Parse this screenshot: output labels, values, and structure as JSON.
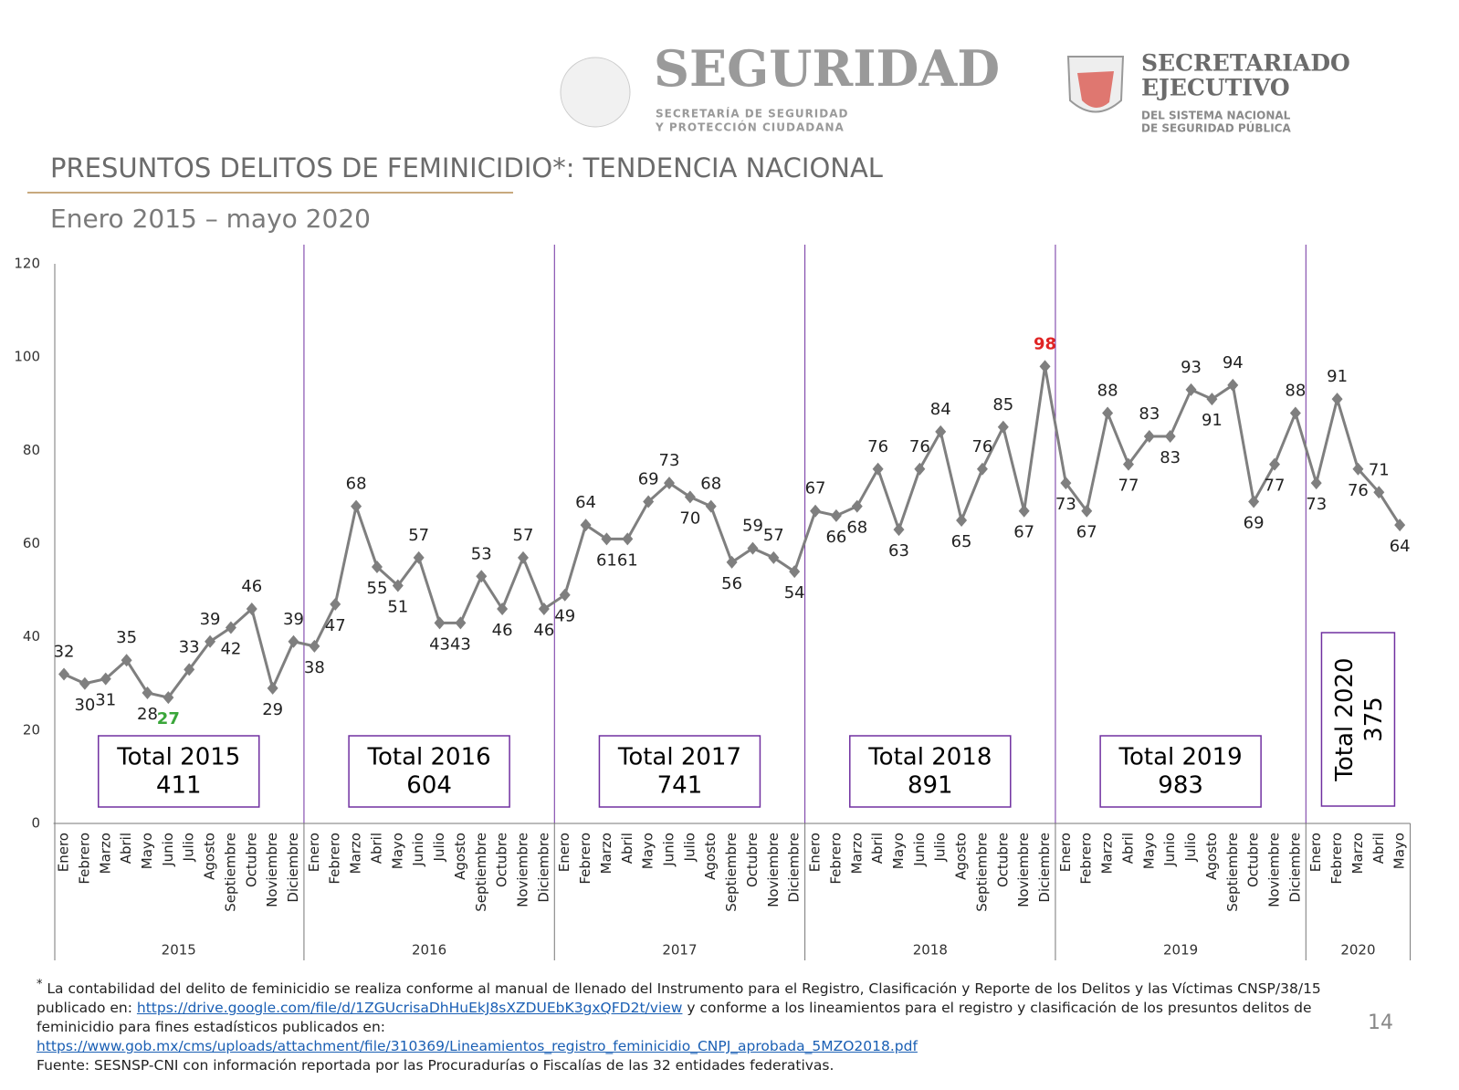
{
  "header": {
    "logo1": {
      "name": "SEGURIDAD",
      "line1": "SECRETARÍA DE SEGURIDAD",
      "line2": "Y PROTECCIÓN CIUDADANA"
    },
    "logo2": {
      "name1": "SECRETARIADO",
      "name2": "EJECUTIVO",
      "line1": "DEL SISTEMA NACIONAL",
      "line2": "DE SEGURIDAD PÚBLICA"
    }
  },
  "chart_data": {
    "type": "line",
    "title": "PRESUNTOS DELITOS DE FEMINICIDIO*: TENDENCIA NACIONAL",
    "subtitle": "Enero 2015 – mayo 2020",
    "categories": [
      "Enero",
      "Febrero",
      "Marzo",
      "Abril",
      "Mayo",
      "Junio",
      "Julio",
      "Agosto",
      "Septiembre",
      "Octubre",
      "Noviembre",
      "Diciembre",
      "Enero",
      "Febrero",
      "Marzo",
      "Abril",
      "Mayo",
      "Junio",
      "Julio",
      "Agosto",
      "Septiembre",
      "Octubre",
      "Noviembre",
      "Diciembre",
      "Enero",
      "Febrero",
      "Marzo",
      "Abril",
      "Mayo",
      "Junio",
      "Julio",
      "Agosto",
      "Septiembre",
      "Octubre",
      "Noviembre",
      "Diciembre",
      "Enero",
      "Febrero",
      "Marzo",
      "Abril",
      "Mayo",
      "Junio",
      "Julio",
      "Agosto",
      "Septiembre",
      "Octubre",
      "Noviembre",
      "Diciembre",
      "Enero",
      "Febrero",
      "Marzo",
      "Abril",
      "Mayo",
      "Junio",
      "Julio",
      "Agosto",
      "Septiembre",
      "Octubre",
      "Noviembre",
      "Diciembre",
      "Enero",
      "Febrero",
      "Marzo",
      "Abril",
      "Mayo"
    ],
    "values": [
      32,
      30,
      31,
      35,
      28,
      27,
      33,
      39,
      42,
      46,
      29,
      39,
      38,
      47,
      68,
      55,
      51,
      57,
      43,
      43,
      53,
      46,
      57,
      46,
      49,
      64,
      61,
      61,
      69,
      73,
      70,
      68,
      56,
      59,
      57,
      54,
      67,
      66,
      68,
      76,
      63,
      76,
      84,
      65,
      76,
      85,
      67,
      98,
      73,
      67,
      88,
      77,
      83,
      83,
      93,
      91,
      94,
      69,
      77,
      88,
      73,
      91,
      76,
      71,
      64
    ],
    "years": [
      {
        "label": "2015",
        "total_label": "Total 2015",
        "total": 411
      },
      {
        "label": "2016",
        "total_label": "Total 2016",
        "total": 604
      },
      {
        "label": "2017",
        "total_label": "Total 2017",
        "total": 741
      },
      {
        "label": "2018",
        "total_label": "Total 2018",
        "total": 891
      },
      {
        "label": "2019",
        "total_label": "Total 2019",
        "total": 983
      },
      {
        "label": "2020",
        "total_label": "Total 2020",
        "total": 375
      }
    ],
    "ylim": [
      0,
      120
    ],
    "yticks": [
      0,
      20,
      40,
      60,
      80,
      100,
      120
    ],
    "grid": false,
    "color": "#7f7f7f",
    "divider_color": "#7030a0",
    "min_color": "#3aa63a",
    "max_color": "#e02424"
  },
  "footnote": {
    "mark": "*",
    "text1": "La contabilidad del delito de feminicidio se realiza conforme al manual de llenado del Instrumento para el Registro, Clasificación y Reporte de los Delitos y las Víctimas CNSP/38/15 publicado en:",
    "link1": "https://drive.google.com/file/d/1ZGUcrisaDhHuEkJ8sXZDUEbK3gxQFD2t/view",
    "text2": "y conforme a los lineamientos para el registro y clasificación de los presuntos delitos de feminicidio para fines estadísticos publicados en:",
    "link2": "https://www.gob.mx/cms/uploads/attachment/file/310369/Lineamientos_registro_feminicidio_CNPJ_aprobada_5MZO2018.pdf",
    "source": "Fuente: SESNSP-CNI con información reportada por las Procuradurías o Fiscalías de las 32 entidades federativas."
  },
  "page_number": 14
}
